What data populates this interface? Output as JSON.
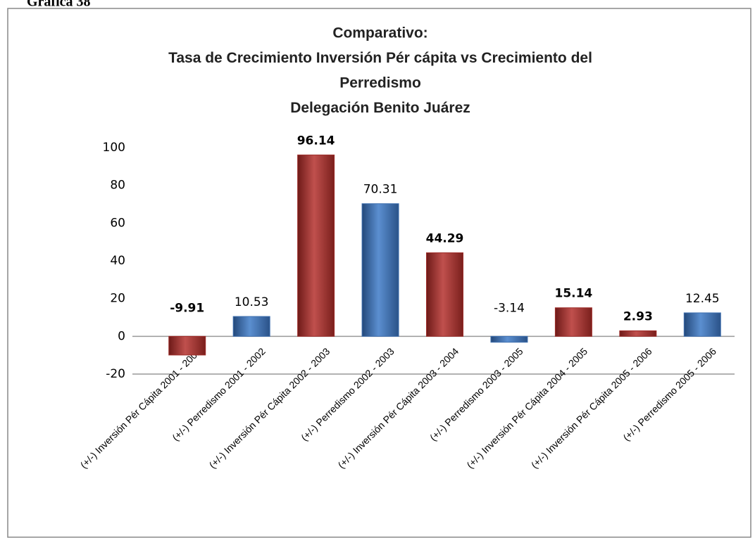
{
  "page_label": "Gráfica 38",
  "chart_data": {
    "type": "bar",
    "title": [
      "Comparativo:",
      "Tasa de Crecimiento Inversión Pér cápita vs Crecimiento del",
      "Perredismo",
      "Delegación Benito Juárez"
    ],
    "categories": [
      "(+/-) Inversión Pér Cápita 2001 - 2002",
      "(+/-) Perredismo 2001 - 2002",
      "(+/-) Inversión Pér Cápita 2002 - 2003",
      "(+/-) Perredismo 2002 - 2003",
      "(+/-) Inversión Pér Cápita 2003 - 2004",
      "(+/-) Perredismo 2003 - 2005",
      "(+/-) Inversión Pér Cápita 2004 - 2005",
      "(+/-) Inversión Pér Cápita 2005 - 2006",
      "(+/-) Perredismo 2005 - 2006"
    ],
    "values": [
      -9.91,
      10.53,
      96.14,
      70.31,
      44.29,
      -3.14,
      15.14,
      2.93,
      12.45
    ],
    "colors": [
      "#9e2e2b",
      "#3f70b0",
      "#9e2e2b",
      "#3f70b0",
      "#9e2e2b",
      "#3f70b0",
      "#9e2e2b",
      "#9e2e2b",
      "#3f70b0"
    ],
    "ylim": [
      -20,
      100
    ],
    "yticks": [
      -20,
      0,
      20,
      40,
      60,
      80,
      100
    ],
    "grid": false
  }
}
